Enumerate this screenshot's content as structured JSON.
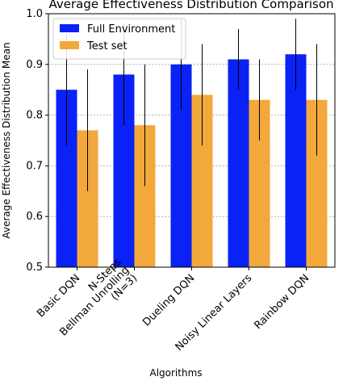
{
  "chart_data": {
    "type": "bar",
    "title": "Average Effectiveness Distribution Comparison",
    "x_label": "Algorithms",
    "y_label": "Average Effectiveness Distribution Mean",
    "categories": [
      "Basic DQN",
      "N-Steps\nBellman Unrolling\n(N=3)",
      "Dueling DQN",
      "Noisy Linear Layers",
      "Rainbow DQN"
    ],
    "series": [
      {
        "name": "Full Environment",
        "color": "#0a22f5",
        "values": [
          0.85,
          0.88,
          0.9,
          0.91,
          0.92
        ],
        "errors": [
          0.11,
          0.1,
          0.09,
          0.06,
          0.07
        ]
      },
      {
        "name": "Test set",
        "color": "#f3a83b",
        "values": [
          0.77,
          0.78,
          0.84,
          0.83,
          0.83
        ],
        "errors": [
          0.12,
          0.12,
          0.1,
          0.08,
          0.11
        ]
      }
    ],
    "ylim": [
      0.5,
      1.0
    ],
    "yticks": [
      0.5,
      0.6,
      0.7,
      0.8,
      0.9,
      {
        "value": 1.0,
        "label": "1.0"
      }
    ],
    "grid": true,
    "legend": "upper left"
  }
}
